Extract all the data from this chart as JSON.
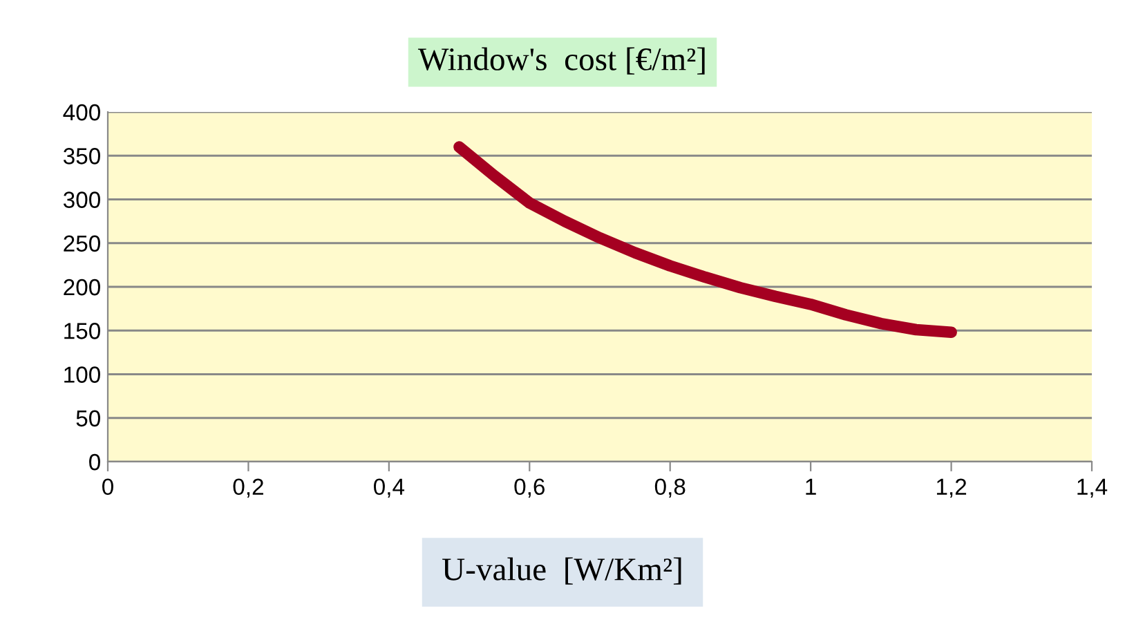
{
  "chart_data": {
    "type": "line",
    "title": "Window's  cost [€/m²]",
    "xlabel": "U-value  [W/Km²]",
    "series": [
      {
        "color": "#a50021",
        "x": [
          0.5,
          0.55,
          0.6,
          0.65,
          0.7,
          0.75,
          0.8,
          0.85,
          0.9,
          0.95,
          1.0,
          1.05,
          1.1,
          1.15,
          1.2
        ],
        "values": [
          360,
          327,
          296,
          275,
          256,
          239,
          224,
          211,
          199,
          189,
          180,
          168,
          158,
          151,
          148
        ]
      }
    ],
    "xlim": [
      0,
      1.4
    ],
    "xticks": [
      {
        "value": 0,
        "label": "0"
      },
      {
        "value": 0.2,
        "label": "0,2"
      },
      {
        "value": 0.4,
        "label": "0,4"
      },
      {
        "value": 0.6,
        "label": "0,6"
      },
      {
        "value": 0.8,
        "label": "0,8"
      },
      {
        "value": 1,
        "label": "1"
      },
      {
        "value": 1.2,
        "label": "1,2"
      },
      {
        "value": 1.4,
        "label": "1,4"
      }
    ],
    "ylim": [
      0,
      400
    ],
    "yticks": [
      0,
      50,
      100,
      150,
      200,
      250,
      300,
      350,
      400
    ],
    "grid": "y",
    "marker": "none",
    "line_style": "solid"
  }
}
